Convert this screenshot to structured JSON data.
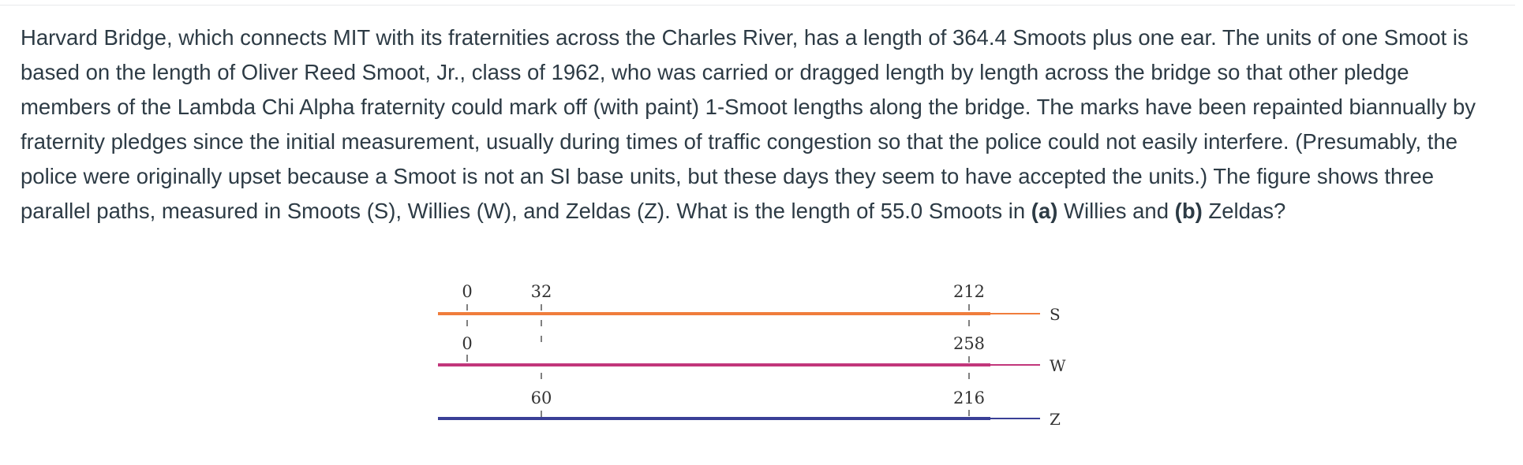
{
  "question": {
    "p1": "Harvard Bridge, which connects MIT with its fraternities across the Charles River, has a length of 364.4 Smoots plus one ear. The units of one Smoot is based on the length of Oliver Reed Smoot, Jr., class of 1962, who was carried or dragged length by length across the bridge so that other pledge members of the Lambda Chi Alpha fraternity could mark off (with paint) 1-Smoot lengths along the bridge. The marks have been repainted biannually by fraternity pledges since the initial measurement, usually during times of traffic congestion so that the police could not easily interfere. (Presumably, the police were originally upset because a Smoot is not an SI base units, but these days they seem to have accepted the units.) The figure shows three parallel paths, measured in Smoots (S), Willies (W), and Zeldas (Z). What is the length of 55.0 Smoots in ",
    "part_a_label": "(a)",
    "part_a_text": " Willies and ",
    "part_b_label": "(b)",
    "part_b_text": " Zeldas?"
  },
  "figure": {
    "paths": [
      {
        "name": "S",
        "color": "#f07d3c",
        "ticks": [
          "0",
          "32",
          "212"
        ]
      },
      {
        "name": "W",
        "color": "#c2367b",
        "ticks": [
          "0",
          "258"
        ]
      },
      {
        "name": "Z",
        "color": "#3a3f96",
        "ticks": [
          "60",
          "216"
        ]
      }
    ]
  }
}
